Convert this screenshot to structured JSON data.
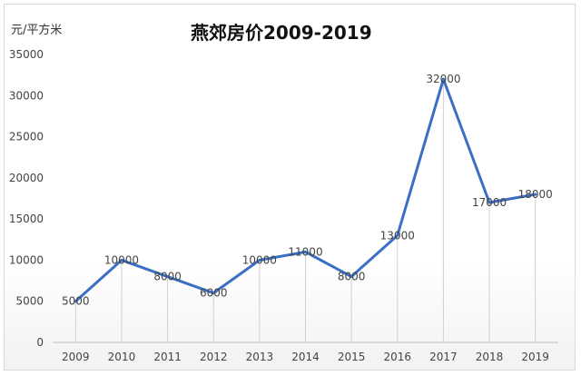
{
  "chart_data": {
    "type": "line",
    "title": "燕郊房价2009-2019",
    "ylabel": "元/平方米",
    "xlabel": "",
    "categories": [
      "2009",
      "2010",
      "2011",
      "2012",
      "2013",
      "2014",
      "2015",
      "2016",
      "2017",
      "2018",
      "2019"
    ],
    "values": [
      5000,
      10000,
      8000,
      6000,
      10000,
      11000,
      8000,
      13000,
      32000,
      17000,
      18000
    ],
    "data_labels": [
      "5000",
      "10000",
      "8000",
      "6000",
      "10000",
      "11000",
      "8000",
      "13000",
      "32000",
      "17000",
      "18000"
    ],
    "ylim": [
      0,
      35000
    ],
    "yticks": [
      0,
      5000,
      10000,
      15000,
      20000,
      25000,
      30000,
      35000
    ],
    "ytick_labels": [
      "0",
      "5000",
      "10000",
      "15000",
      "20000",
      "25000",
      "30000",
      "35000"
    ],
    "grid": false,
    "drop_lines": true,
    "line_color": "#3a6fc4",
    "drop_line_color": "#d0d0d0"
  }
}
